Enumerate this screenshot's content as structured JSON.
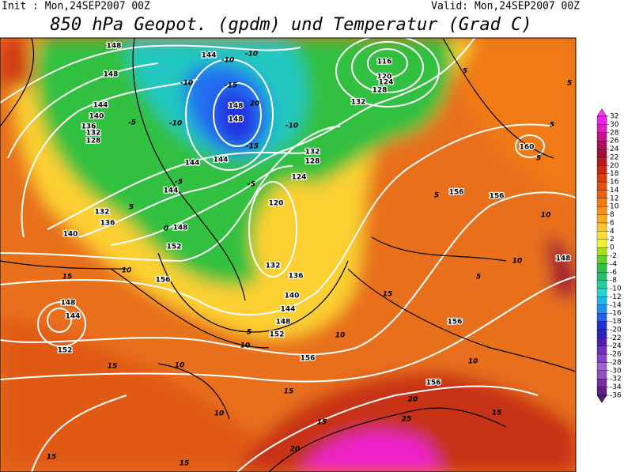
{
  "header": {
    "init": "Init : Mon,24SEP2007 00Z",
    "valid": "Valid: Mon,24SEP2007 00Z",
    "title": "850 hPa Geopot. (gpdm) und Temperatur (Grad C)"
  },
  "colorbar": {
    "ticks": [
      32,
      30,
      28,
      26,
      24,
      22,
      20,
      18,
      16,
      14,
      12,
      10,
      8,
      6,
      4,
      2,
      0,
      -2,
      -4,
      -6,
      -8,
      -10,
      -12,
      -14,
      -16,
      -18,
      -20,
      -22,
      -24,
      -26,
      -28,
      -30,
      -32,
      -34,
      -36
    ],
    "colors": [
      "#ff33ff",
      "#ee22ee",
      "#dd22bb",
      "#cc1188",
      "#b0105a",
      "#a0103a",
      "#b81820",
      "#cc2a10",
      "#dd3a10",
      "#e84e10",
      "#f06010",
      "#f57a10",
      "#f89018",
      "#faa820",
      "#fcc428",
      "#fde030",
      "#f0f030",
      "#a8e020",
      "#60d030",
      "#30c040",
      "#20c070",
      "#20d0a0",
      "#20d8d0",
      "#20b8e8",
      "#2090f0",
      "#2060f0",
      "#2030e0",
      "#3020c0",
      "#5020b0",
      "#7030c0",
      "#8840d0",
      "#a060d8",
      "#9050c0",
      "#7030a0",
      "#602080",
      "#501870"
    ]
  },
  "contour_labels": [
    148,
    144,
    -10,
    -10,
    116,
    120,
    124,
    128,
    132,
    144,
    148,
    140,
    136,
    132,
    128,
    -10,
    -15,
    148,
    148,
    20,
    -10,
    -15,
    -10,
    132,
    128,
    144,
    144,
    124,
    120,
    144,
    148,
    152,
    156,
    132,
    136,
    140,
    144,
    148,
    152,
    156,
    156,
    156,
    156,
    156,
    160,
    148,
    148,
    144,
    152,
    132,
    136,
    140,
    10,
    15,
    15,
    10,
    10,
    15,
    15,
    20,
    25,
    20,
    15,
    15,
    15,
    10,
    10,
    15,
    5,
    10,
    5,
    5,
    5,
    5,
    10,
    5,
    5,
    -5,
    -5,
    -5,
    0,
    5,
    10
  ]
}
